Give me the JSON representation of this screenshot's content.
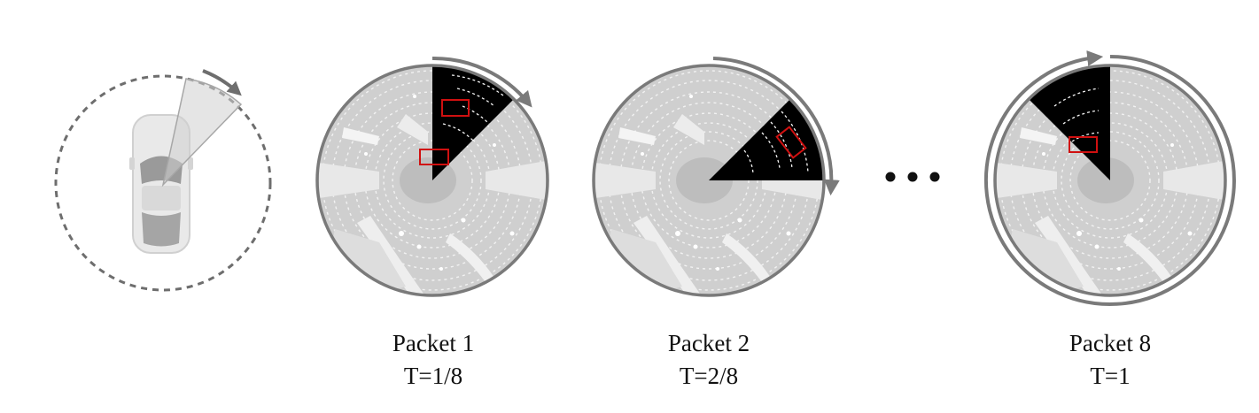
{
  "packets": [
    {
      "title": "Packet 1",
      "time": "T=1/8"
    },
    {
      "title": "Packet 2",
      "time": "T=2/8"
    },
    {
      "title": "Packet 8",
      "time": "T=1"
    }
  ],
  "ellipsis": "• • •",
  "colors": {
    "disk_fill": "#cfcfcf",
    "disk_border": "#7a7a7a",
    "scan_sector": "#000000",
    "points": "#ffffff",
    "bbox": "#d01010",
    "arrow": "#7a7a7a",
    "dashed_circle": "#6e6e6e",
    "car_body": "#e6e6e6",
    "car_roof": "#9a9a9a"
  },
  "icons": [
    "car-icon",
    "lidar-beam-icon",
    "rotation-arrow-icon",
    "bounding-box-icon"
  ]
}
